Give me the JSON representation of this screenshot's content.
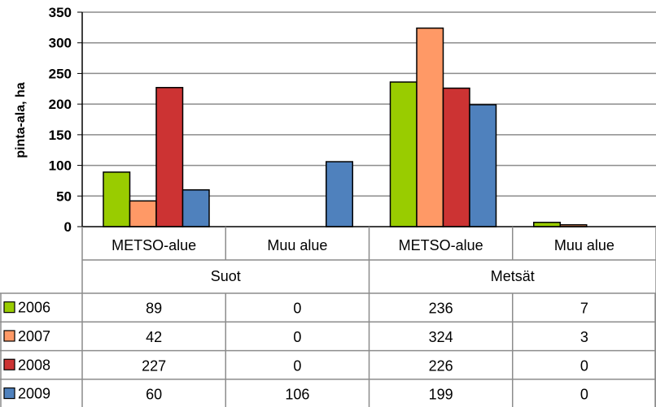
{
  "chart_data": {
    "type": "bar",
    "ylabel": "pinta-ala, ha",
    "ylim": [
      0,
      350
    ],
    "yticks": [
      0,
      50,
      100,
      150,
      200,
      250,
      300,
      350
    ],
    "grid": true,
    "legend_placement": "left of data table",
    "groups": [
      {
        "label": "Suot",
        "subcategories": [
          "METSO-alue",
          "Muu alue"
        ]
      },
      {
        "label": "Metsät",
        "subcategories": [
          "METSO-alue",
          "Muu alue"
        ]
      }
    ],
    "categories": [
      "METSO-alue",
      "Muu alue",
      "METSO-alue",
      "Muu alue"
    ],
    "series": [
      {
        "name": "2006",
        "color": "#99cc00",
        "values": [
          89,
          0,
          236,
          7
        ]
      },
      {
        "name": "2007",
        "color": "#ff9966",
        "values": [
          42,
          0,
          324,
          3
        ]
      },
      {
        "name": "2008",
        "color": "#cc3333",
        "values": [
          227,
          0,
          226,
          0
        ]
      },
      {
        "name": "2009",
        "color": "#4f81bd",
        "values": [
          60,
          106,
          199,
          0
        ]
      }
    ]
  }
}
